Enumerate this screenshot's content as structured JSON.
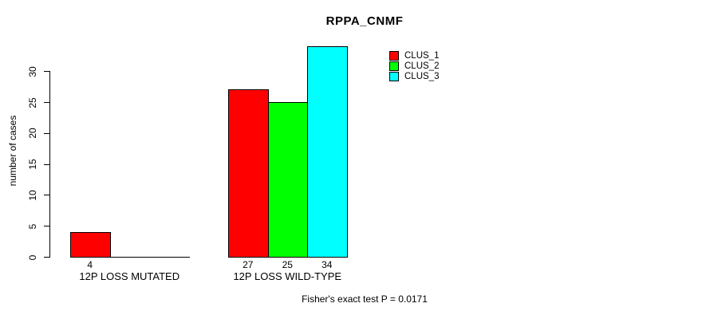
{
  "title": "RPPA_CNMF",
  "annotation": "Fisher's exact test P = 0.0171",
  "chart_data": {
    "type": "bar",
    "title": "RPPA_CNMF",
    "xlabel": "",
    "ylabel": "number of cases",
    "categories": [
      "12P LOSS MUTATED",
      "12P LOSS WILD-TYPE"
    ],
    "series": [
      {
        "name": "CLUS_1",
        "color": "#ff0000",
        "values": [
          4,
          27
        ]
      },
      {
        "name": "CLUS_2",
        "color": "#00ff00",
        "values": [
          0,
          25
        ]
      },
      {
        "name": "CLUS_3",
        "color": "#00ffff",
        "values": [
          0,
          34
        ]
      }
    ],
    "bar_value_labels": [
      [
        "4",
        "",
        ""
      ],
      [
        "27",
        "25",
        "34"
      ]
    ],
    "yticks": [
      0,
      5,
      10,
      15,
      20,
      25,
      30
    ],
    "ylim": [
      0,
      34
    ],
    "grid": false,
    "legend_position": "top-right",
    "legend_entries": [
      "CLUS_1",
      "CLUS_2",
      "CLUS_3"
    ],
    "annotation": "Fisher's exact test P = 0.0171"
  }
}
